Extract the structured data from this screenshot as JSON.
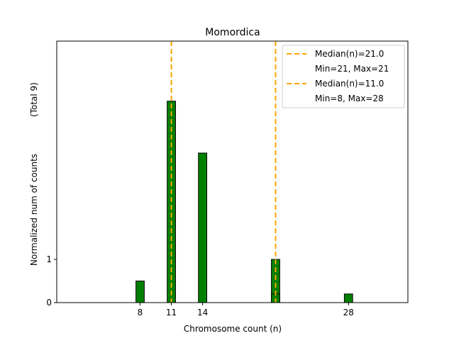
{
  "chart_data": {
    "type": "bar",
    "title": "Momordica",
    "xlabel": "Chromosome count (n)",
    "ylabel": "Normalized num of counts",
    "ylabel_note": "(Total 9)",
    "xlim": [
      0,
      33.7
    ],
    "ylim": [
      0,
      6.05
    ],
    "xticks": [
      8,
      11,
      14,
      28
    ],
    "yticks": [
      0,
      1
    ],
    "bar_width": 0.8,
    "bar_color": "#008000",
    "median_color": "#FFA500",
    "series": [
      {
        "name": "Median(n)=21.0",
        "range_label": "Min=21, Max=21",
        "median": 21,
        "x": [
          21
        ],
        "values": [
          1.0
        ]
      },
      {
        "name": "Median(n)=11.0",
        "range_label": "Min=8, Max=28",
        "median": 11,
        "x": [
          8,
          11,
          14,
          21,
          28
        ],
        "values": [
          0.5,
          4.66,
          3.46,
          0.2,
          0.2
        ]
      }
    ],
    "legend_position": "top-right",
    "grid": false
  }
}
